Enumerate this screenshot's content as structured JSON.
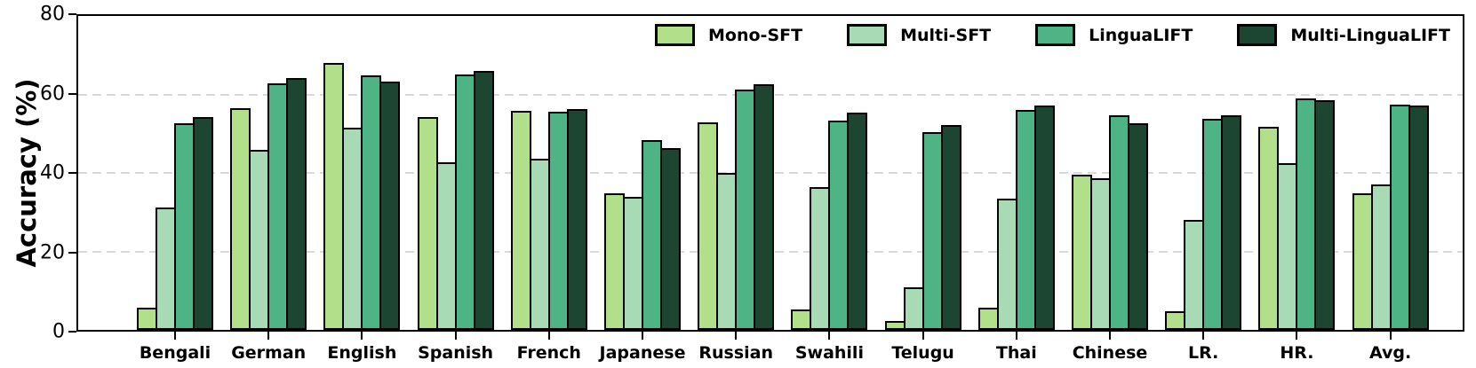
{
  "chart_data": {
    "type": "bar",
    "title": "",
    "xlabel": "",
    "ylabel": "Accuracy (%)",
    "ylim": [
      0,
      80
    ],
    "yticks": [
      0,
      20,
      40,
      60,
      80
    ],
    "grid": "horizontal dashed gridlines at 20, 40, 60",
    "legend_position": "top-right inside plot, horizontal",
    "bar_edge_color": "#000000",
    "categories": [
      "Bengali",
      "German",
      "English",
      "Spanish",
      "French",
      "Japanese",
      "Russian",
      "Swahili",
      "Telugu",
      "Thai",
      "Chinese",
      "LR.",
      "HR.",
      "Avg."
    ],
    "series": [
      {
        "name": "Mono-SFT",
        "color": "#b2df8a",
        "values": [
          5.6,
          56.4,
          68.0,
          54.3,
          55.9,
          34.7,
          52.8,
          5.3,
          2.2,
          5.7,
          39.5,
          4.7,
          51.7,
          34.7
        ]
      },
      {
        "name": "Multi-SFT",
        "color": "#a8dab5",
        "values": [
          31.1,
          45.9,
          51.5,
          42.7,
          43.6,
          33.9,
          39.9,
          36.5,
          10.8,
          33.5,
          38.7,
          28.1,
          42.4,
          37.0
        ]
      },
      {
        "name": "LinguaLIFT",
        "color": "#4eb385",
        "values": [
          52.7,
          62.8,
          64.9,
          65.1,
          55.5,
          48.4,
          61.2,
          53.4,
          50.4,
          56.0,
          54.8,
          53.9,
          59.0,
          57.5
        ]
      },
      {
        "name": "Multi-LinguaLIFT",
        "color": "#1c4532",
        "values": [
          54.3,
          64.2,
          63.3,
          66.1,
          56.3,
          46.3,
          62.6,
          55.4,
          52.3,
          57.2,
          52.6,
          54.8,
          58.6,
          57.2
        ]
      }
    ]
  }
}
